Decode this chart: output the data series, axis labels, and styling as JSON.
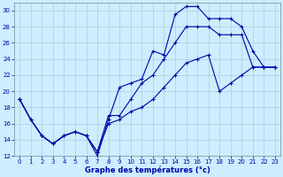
{
  "xlabel": "Graphe des températures (°c)",
  "background_color": "#cceeff",
  "grid_color": "#aaccdd",
  "line_color": "#0000aa",
  "ylim": [
    12,
    31
  ],
  "xlim": [
    -0.5,
    23.5
  ],
  "yticks": [
    12,
    14,
    16,
    18,
    20,
    22,
    24,
    26,
    28,
    30
  ],
  "xticks": [
    0,
    1,
    2,
    3,
    4,
    5,
    6,
    7,
    8,
    9,
    10,
    11,
    12,
    13,
    14,
    15,
    16,
    17,
    18,
    19,
    20,
    21,
    22,
    23
  ],
  "line1_x": [
    0,
    1,
    2,
    3,
    4,
    5,
    6,
    7,
    8,
    9,
    10,
    11,
    12,
    13,
    14,
    15,
    16,
    17,
    18,
    19,
    20,
    21,
    22,
    23
  ],
  "line1_y": [
    19,
    16.5,
    14.5,
    13.5,
    14.5,
    15,
    14.5,
    12,
    16.5,
    20.5,
    21,
    21.5,
    25,
    24.5,
    29.5,
    30.5,
    30.5,
    29,
    29,
    29,
    28,
    25,
    23,
    23
  ],
  "line2_x": [
    0,
    1,
    2,
    3,
    4,
    5,
    6,
    7,
    8,
    9,
    10,
    11,
    12,
    13,
    14,
    15,
    16,
    17,
    18,
    19,
    20,
    21,
    22,
    23
  ],
  "line2_y": [
    19,
    16.5,
    14.5,
    13.5,
    14.5,
    15,
    14.5,
    12.5,
    17,
    17,
    19,
    21,
    22,
    24,
    26,
    28,
    28,
    28,
    27,
    27,
    27,
    23,
    23,
    23
  ],
  "line3_x": [
    0,
    1,
    2,
    3,
    4,
    5,
    6,
    7,
    8,
    9,
    10,
    11,
    12,
    13,
    14,
    15,
    16,
    17,
    18,
    19,
    20,
    21,
    22,
    23
  ],
  "line3_y": [
    19,
    16.5,
    14.5,
    13.5,
    14.5,
    15,
    14.5,
    12.5,
    16,
    16.5,
    17.5,
    18,
    19,
    20.5,
    22,
    23.5,
    24,
    24.5,
    20,
    21,
    22,
    23,
    23,
    23
  ],
  "tick_fontsize": 5.0,
  "xlabel_fontsize": 6.0,
  "linewidth": 0.8,
  "markersize": 3.0
}
